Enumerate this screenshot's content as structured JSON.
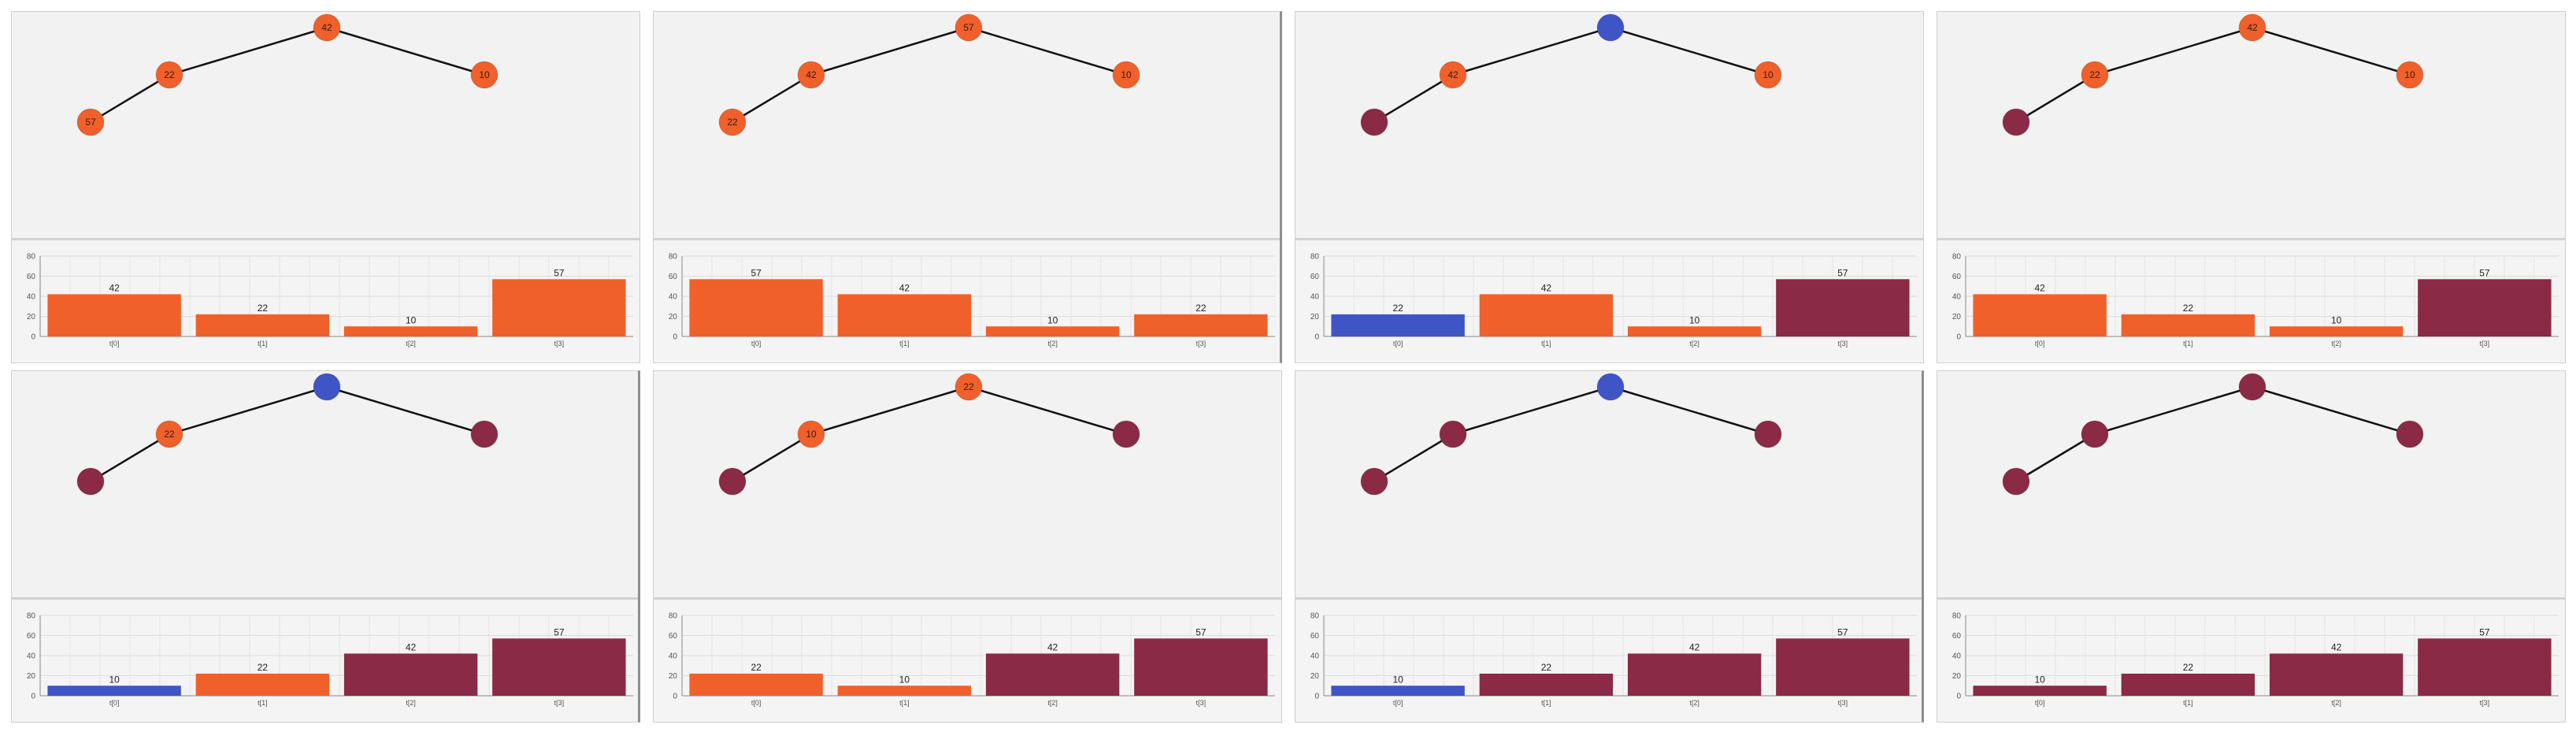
{
  "colors": {
    "active": "#f0602a",
    "compare": "#3f55c6",
    "sorted": "#8b2a44",
    "edge": "#111111",
    "grid": "#dcdcdc",
    "axis": "#888888",
    "text": "#222222"
  },
  "chart_data": [
    {
      "type": "bar",
      "title": "",
      "xlabel": "",
      "ylabel": "",
      "categories": [
        "t[0]",
        "t[1]",
        "t[2]",
        "t[3]"
      ],
      "values": [
        42,
        22,
        10,
        57
      ],
      "bar_states": [
        "active",
        "active",
        "active",
        "active"
      ],
      "ylim": [
        0,
        80
      ],
      "yticks": [
        0,
        20,
        40,
        60,
        80
      ],
      "grid": true,
      "tree": {
        "nodes": [
          {
            "label": "42",
            "state": "active"
          },
          {
            "label": "22",
            "state": "active"
          },
          {
            "label": "10",
            "state": "active"
          },
          {
            "label": "57",
            "state": "active"
          }
        ]
      }
    },
    {
      "type": "bar",
      "title": "",
      "xlabel": "",
      "ylabel": "",
      "categories": [
        "t[0]",
        "t[1]",
        "t[2]",
        "t[3]"
      ],
      "values": [
        57,
        42,
        10,
        22
      ],
      "bar_states": [
        "active",
        "active",
        "active",
        "active"
      ],
      "ylim": [
        0,
        80
      ],
      "yticks": [
        0,
        20,
        40,
        60,
        80
      ],
      "grid": true,
      "tree": {
        "nodes": [
          {
            "label": "57",
            "state": "active"
          },
          {
            "label": "42",
            "state": "active"
          },
          {
            "label": "10",
            "state": "active"
          },
          {
            "label": "22",
            "state": "active"
          }
        ]
      }
    },
    {
      "type": "bar",
      "title": "",
      "xlabel": "",
      "ylabel": "",
      "categories": [
        "t[0]",
        "t[1]",
        "t[2]",
        "t[3]"
      ],
      "values": [
        22,
        42,
        10,
        57
      ],
      "bar_states": [
        "compare",
        "active",
        "active",
        "sorted"
      ],
      "ylim": [
        0,
        80
      ],
      "yticks": [
        0,
        20,
        40,
        60,
        80
      ],
      "grid": true,
      "tree": {
        "nodes": [
          {
            "label": "",
            "state": "compare"
          },
          {
            "label": "42",
            "state": "active"
          },
          {
            "label": "10",
            "state": "active"
          },
          {
            "label": "",
            "state": "sorted"
          }
        ]
      }
    },
    {
      "type": "bar",
      "title": "",
      "xlabel": "",
      "ylabel": "",
      "categories": [
        "t[0]",
        "t[1]",
        "t[2]",
        "t[3]"
      ],
      "values": [
        42,
        22,
        10,
        57
      ],
      "bar_states": [
        "active",
        "active",
        "active",
        "sorted"
      ],
      "ylim": [
        0,
        80
      ],
      "yticks": [
        0,
        20,
        40,
        60,
        80
      ],
      "grid": true,
      "tree": {
        "nodes": [
          {
            "label": "42",
            "state": "active"
          },
          {
            "label": "22",
            "state": "active"
          },
          {
            "label": "10",
            "state": "active"
          },
          {
            "label": "",
            "state": "sorted"
          }
        ]
      }
    },
    {
      "type": "bar",
      "title": "",
      "xlabel": "",
      "ylabel": "",
      "categories": [
        "t[0]",
        "t[1]",
        "t[2]",
        "t[3]"
      ],
      "values": [
        10,
        22,
        42,
        57
      ],
      "bar_states": [
        "compare",
        "active",
        "sorted",
        "sorted"
      ],
      "ylim": [
        0,
        80
      ],
      "yticks": [
        0,
        20,
        40,
        60,
        80
      ],
      "grid": true,
      "tree": {
        "nodes": [
          {
            "label": "",
            "state": "compare"
          },
          {
            "label": "22",
            "state": "active"
          },
          {
            "label": "",
            "state": "sorted"
          },
          {
            "label": "",
            "state": "sorted"
          }
        ]
      }
    },
    {
      "type": "bar",
      "title": "",
      "xlabel": "",
      "ylabel": "",
      "categories": [
        "t[0]",
        "t[1]",
        "t[2]",
        "t[3]"
      ],
      "values": [
        22,
        10,
        42,
        57
      ],
      "bar_states": [
        "active",
        "active",
        "sorted",
        "sorted"
      ],
      "ylim": [
        0,
        80
      ],
      "yticks": [
        0,
        20,
        40,
        60,
        80
      ],
      "grid": true,
      "tree": {
        "nodes": [
          {
            "label": "22",
            "state": "active"
          },
          {
            "label": "10",
            "state": "active"
          },
          {
            "label": "",
            "state": "sorted"
          },
          {
            "label": "",
            "state": "sorted"
          }
        ]
      }
    },
    {
      "type": "bar",
      "title": "",
      "xlabel": "",
      "ylabel": "",
      "categories": [
        "t[0]",
        "t[1]",
        "t[2]",
        "t[3]"
      ],
      "values": [
        10,
        22,
        42,
        57
      ],
      "bar_states": [
        "compare",
        "sorted",
        "sorted",
        "sorted"
      ],
      "ylim": [
        0,
        80
      ],
      "yticks": [
        0,
        20,
        40,
        60,
        80
      ],
      "grid": true,
      "tree": {
        "nodes": [
          {
            "label": "",
            "state": "compare"
          },
          {
            "label": "",
            "state": "sorted"
          },
          {
            "label": "",
            "state": "sorted"
          },
          {
            "label": "",
            "state": "sorted"
          }
        ]
      }
    },
    {
      "type": "bar",
      "title": "",
      "xlabel": "",
      "ylabel": "",
      "categories": [
        "t[0]",
        "t[1]",
        "t[2]",
        "t[3]"
      ],
      "values": [
        10,
        22,
        42,
        57
      ],
      "bar_states": [
        "sorted",
        "sorted",
        "sorted",
        "sorted"
      ],
      "ylim": [
        0,
        80
      ],
      "yticks": [
        0,
        20,
        40,
        60,
        80
      ],
      "grid": true,
      "tree": {
        "nodes": [
          {
            "label": "",
            "state": "sorted"
          },
          {
            "label": "",
            "state": "sorted"
          },
          {
            "label": "",
            "state": "sorted"
          },
          {
            "label": "",
            "state": "sorted"
          }
        ]
      }
    }
  ]
}
